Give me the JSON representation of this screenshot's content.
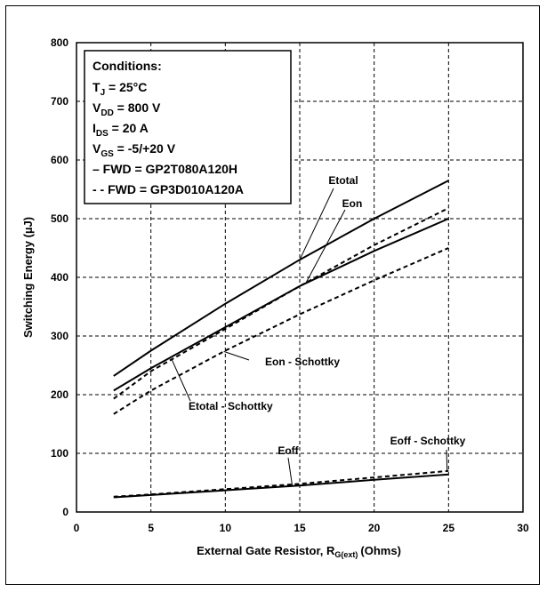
{
  "chart_data": {
    "type": "line",
    "xlabel": "External Gate Resistor, R",
    "xlabel_sub": "G(ext)",
    "xlabel_unit": "(Ohms)",
    "ylabel": "Switching Energy (µJ)",
    "xlim": [
      0,
      30
    ],
    "ylim": [
      0,
      800
    ],
    "x_ticks": [
      0,
      5,
      10,
      15,
      20,
      25,
      30
    ],
    "y_ticks": [
      0,
      100,
      200,
      300,
      400,
      500,
      600,
      700,
      800
    ],
    "grid": "dashed",
    "legend": {
      "title": "Conditions:",
      "lines": [
        {
          "main": "T",
          "sub": "J",
          "rest": " = 25°C"
        },
        {
          "main": "V",
          "sub": "DD",
          "rest": " = 800 V"
        },
        {
          "main": "I",
          "sub": "DS",
          "rest": " = 20 A"
        },
        {
          "main": "V",
          "sub": "GS",
          "rest": " = -5/+20 V"
        },
        {
          "main": "– FWD = GP2T080A120H",
          "sub": "",
          "rest": ""
        },
        {
          "main": "- - FWD = GP3D010A120A",
          "sub": "",
          "rest": ""
        }
      ]
    },
    "series": [
      {
        "name": "Etotal",
        "style": "solid",
        "x": [
          2.5,
          5,
          10,
          15,
          20,
          25
        ],
        "y": [
          232,
          275,
          355,
          430,
          500,
          565
        ]
      },
      {
        "name": "Eon",
        "style": "solid",
        "x": [
          2.5,
          5,
          10,
          15,
          20,
          25
        ],
        "y": [
          207,
          245,
          315,
          385,
          445,
          500
        ]
      },
      {
        "name": "Eoff",
        "style": "solid",
        "x": [
          2.5,
          5,
          10,
          15,
          20,
          25
        ],
        "y": [
          25,
          29,
          37,
          45,
          55,
          64
        ]
      },
      {
        "name": "Etotal - Schottky",
        "style": "dashed",
        "x": [
          2.5,
          5,
          10,
          15,
          20,
          25
        ],
        "y": [
          193,
          240,
          312,
          385,
          455,
          518
        ]
      },
      {
        "name": "Eon - Schottky",
        "style": "dashed",
        "x": [
          2.5,
          5,
          10,
          15,
          20,
          25
        ],
        "y": [
          167,
          207,
          275,
          337,
          395,
          450
        ]
      },
      {
        "name": "Eoff - Schottky",
        "style": "dashed",
        "x": [
          2.5,
          5,
          10,
          15,
          20,
          25
        ],
        "y": [
          26,
          30,
          39,
          48,
          59,
          70
        ]
      }
    ]
  }
}
